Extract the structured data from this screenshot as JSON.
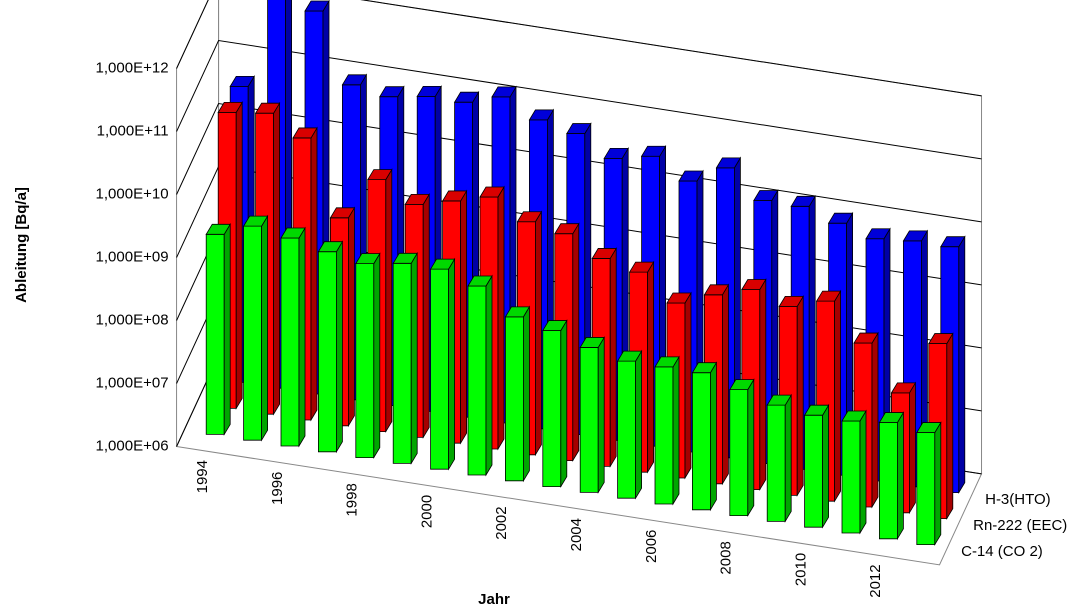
{
  "chart_data": {
    "type": "bar3d",
    "y_label": "Ableitung [Bq/a]",
    "x_label": "Jahr",
    "log_scale": true,
    "categories": [
      "1994",
      null,
      "1996",
      null,
      "1998",
      null,
      "2000",
      null,
      "2002",
      null,
      "2004",
      null,
      "2006",
      null,
      "2008",
      null,
      "2010",
      null,
      "2012",
      null
    ],
    "ylim": [
      1000000,
      1000000000000
    ],
    "yticks": [
      {
        "value": 1000000,
        "label": "1,000E+06"
      },
      {
        "value": 10000000,
        "label": "1,000E+07"
      },
      {
        "value": 100000000,
        "label": "1,000E+08"
      },
      {
        "value": 1000000000,
        "label": "1,000E+09"
      },
      {
        "value": 10000000000,
        "label": "1,000E+10"
      },
      {
        "value": 100000000000,
        "label": "1,000E+11"
      },
      {
        "value": 1000000000000,
        "label": "1,000E+12"
      }
    ],
    "series": [
      {
        "name": "H-3(HTO)",
        "color": "#0000ff",
        "values": [
          50000000000,
          1500000000000,
          1200000000000,
          100000000000,
          80000000000,
          100000000000,
          100000000000,
          150000000000,
          80000000000,
          60000000000,
          30000000000,
          40000000000,
          20000000000,
          40000000000,
          15000000000,
          15000000000,
          10000000000,
          7000000000,
          8000000000,
          8000000000
        ]
      },
      {
        "name": "Rn-222 (EEC)",
        "color": "#ff0000",
        "values": [
          50000000000,
          60000000000,
          30000000000,
          2000000000,
          10000000000,
          5000000000,
          7000000000,
          10000000000,
          5000000000,
          4000000000,
          2000000000,
          1500000000,
          600000000,
          1000000000,
          1500000000,
          1000000000,
          1500000000,
          400000000,
          80000000,
          600000000
        ]
      },
      {
        "name": "C-14 (CO 2)",
        "color": "#00ff00",
        "values": [
          1500000000,
          2500000000,
          2000000000,
          1500000000,
          1200000000,
          1500000000,
          1500000000,
          1000000000,
          400000000,
          300000000,
          200000000,
          150000000,
          150000000,
          150000000,
          100000000,
          70000000,
          60000000,
          60000000,
          70000000,
          60000000
        ]
      }
    ]
  }
}
